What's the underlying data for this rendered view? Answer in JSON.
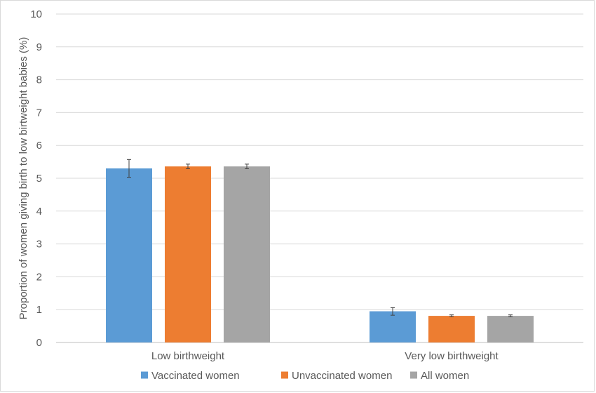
{
  "chart_data": {
    "type": "bar",
    "ylabel": "Proportion of women giving birth to low birtweight babies (%)",
    "xlabel": "",
    "ylim": [
      0,
      10
    ],
    "yticks": [
      0,
      1,
      2,
      3,
      4,
      5,
      6,
      7,
      8,
      9,
      10
    ],
    "grid": true,
    "legend_position": "bottom",
    "categories": [
      "Low birthweight",
      "Very low birthweight"
    ],
    "series": [
      {
        "name": "Vaccinated women",
        "color": "#5b9bd5",
        "values": [
          5.3,
          0.95
        ],
        "error_low": [
          5.03,
          0.83
        ],
        "error_high": [
          5.57,
          1.06
        ]
      },
      {
        "name": "Unvaccinated women",
        "color": "#ed7d31",
        "values": [
          5.36,
          0.81
        ],
        "error_low": [
          5.29,
          0.78
        ],
        "error_high": [
          5.43,
          0.84
        ]
      },
      {
        "name": "All women",
        "color": "#a5a5a5",
        "values": [
          5.36,
          0.81
        ],
        "error_low": [
          5.29,
          0.78
        ],
        "error_high": [
          5.43,
          0.84
        ]
      }
    ]
  }
}
